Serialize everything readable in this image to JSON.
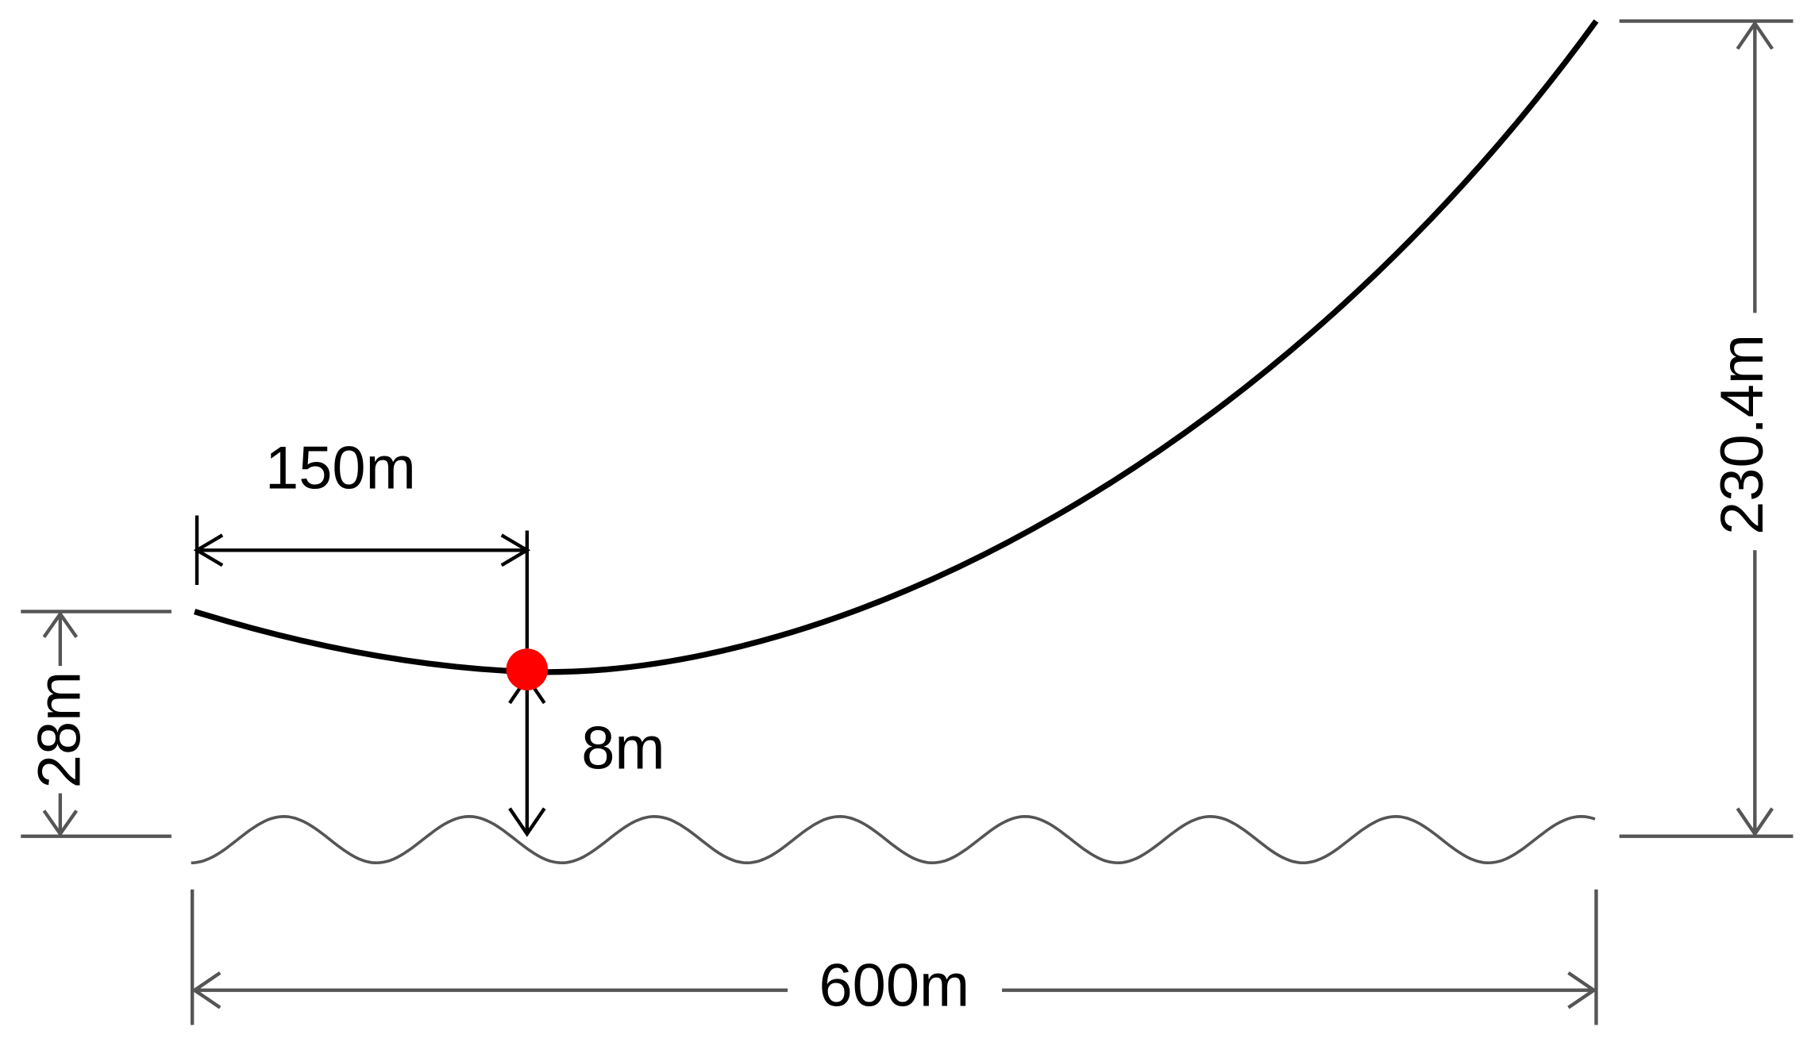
{
  "dimensions": {
    "horizontal_offset": "150m",
    "clearance": "8m",
    "left_height": "28m",
    "right_height": "230.4m",
    "span": "600m"
  }
}
